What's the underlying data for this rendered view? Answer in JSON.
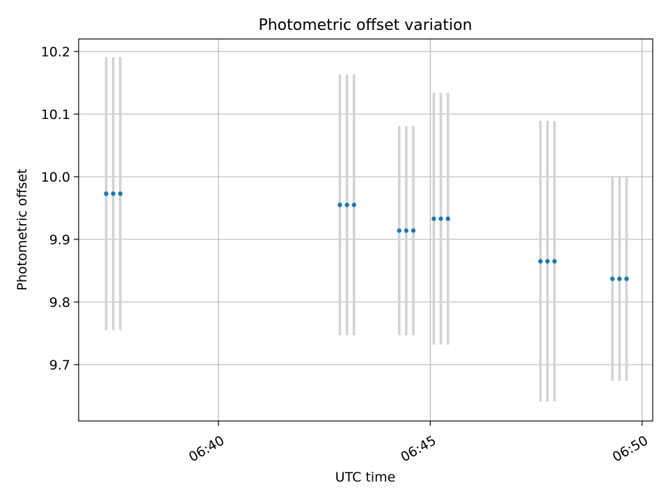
{
  "chart_data": {
    "type": "scatter",
    "title": "Photometric offset variation",
    "xlabel": "UTC time",
    "ylabel": "Photometric offset",
    "x_axis": {
      "type": "time",
      "range": [
        "06:36:42",
        "06:50:15"
      ],
      "ticks": [
        {
          "label": "06:40",
          "value": "06:40:00"
        },
        {
          "label": "06:45",
          "value": "06:45:00"
        },
        {
          "label": "06:50",
          "value": "06:50:00"
        }
      ]
    },
    "y_axis": {
      "range": [
        9.61,
        10.22
      ],
      "ticks": [
        9.7,
        9.8,
        9.9,
        10.0,
        10.1,
        10.2
      ],
      "tick_labels": [
        "9.7",
        "9.8",
        "9.9",
        "10.0",
        "10.1",
        "10.2"
      ]
    },
    "grid": true,
    "series": [
      {
        "marker_color": "#1f77b4",
        "errorbar_color": "#d3d3d3",
        "points": [
          {
            "x": "06:37:21",
            "y": 9.973,
            "err": 0.218
          },
          {
            "x": "06:37:31",
            "y": 9.973,
            "err": 0.218
          },
          {
            "x": "06:37:41",
            "y": 9.973,
            "err": 0.218
          },
          {
            "x": "06:42:52",
            "y": 9.955,
            "err": 0.208
          },
          {
            "x": "06:43:02",
            "y": 9.955,
            "err": 0.208
          },
          {
            "x": "06:43:12",
            "y": 9.955,
            "err": 0.208
          },
          {
            "x": "06:44:16",
            "y": 9.914,
            "err": 0.167
          },
          {
            "x": "06:44:26",
            "y": 9.914,
            "err": 0.167
          },
          {
            "x": "06:44:36",
            "y": 9.914,
            "err": 0.167
          },
          {
            "x": "06:45:05",
            "y": 9.933,
            "err": 0.201
          },
          {
            "x": "06:45:15",
            "y": 9.933,
            "err": 0.201
          },
          {
            "x": "06:45:25",
            "y": 9.933,
            "err": 0.201
          },
          {
            "x": "06:47:36",
            "y": 9.865,
            "err": 0.224
          },
          {
            "x": "06:47:46",
            "y": 9.865,
            "err": 0.224
          },
          {
            "x": "06:47:56",
            "y": 9.865,
            "err": 0.224
          },
          {
            "x": "06:49:18",
            "y": 9.837,
            "err": 0.163
          },
          {
            "x": "06:49:28",
            "y": 9.837,
            "err": 0.163
          },
          {
            "x": "06:49:38",
            "y": 9.837,
            "err": 0.163
          }
        ]
      }
    ]
  }
}
